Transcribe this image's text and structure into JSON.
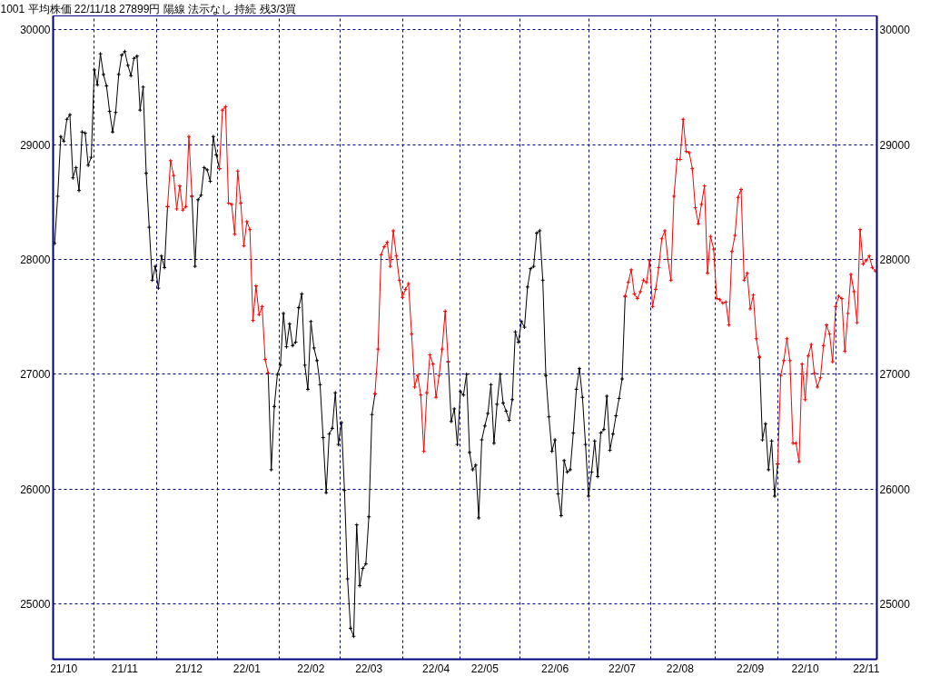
{
  "chart_data": {
    "type": "line",
    "title": "1001 平均株価 22/11/18 27899円 陽線 法示なし 持続 残3/3買",
    "categories": [
      null,
      null,
      null,
      "21/10",
      null,
      null,
      null,
      null,
      null,
      null,
      null,
      null,
      null,
      null,
      null,
      null,
      null,
      null,
      null,
      null,
      null,
      null,
      null,
      "21/11",
      null,
      null,
      null,
      null,
      null,
      null,
      null,
      null,
      null,
      null,
      null,
      null,
      null,
      null,
      null,
      null,
      null,
      null,
      null,
      null,
      "21/12",
      null,
      null,
      null,
      null,
      null,
      null,
      null,
      null,
      null,
      null,
      null,
      null,
      null,
      null,
      null,
      null,
      null,
      null,
      "22/01",
      null,
      null,
      null,
      null,
      null,
      null,
      null,
      null,
      null,
      null,
      null,
      null,
      null,
      null,
      null,
      null,
      null,
      null,
      null,
      null,
      "22/02",
      null,
      null,
      null,
      null,
      null,
      null,
      null,
      null,
      null,
      null,
      null,
      null,
      null,
      null,
      null,
      null,
      null,
      null,
      "22/03",
      null,
      null,
      null,
      null,
      null,
      null,
      null,
      null,
      null,
      null,
      null,
      null,
      null,
      null,
      null,
      null,
      null,
      null,
      null,
      null,
      null,
      "22/04",
      null,
      null,
      null,
      null,
      null,
      null,
      null,
      null,
      null,
      null,
      null,
      null,
      null,
      null,
      null,
      "22/05",
      null,
      null,
      null,
      null,
      null,
      null,
      null,
      null,
      null,
      null,
      null,
      null,
      null,
      null,
      null,
      null,
      null,
      null,
      null,
      null,
      null,
      null,
      "22/06",
      null,
      null,
      null,
      null,
      null,
      null,
      null,
      null,
      null,
      null,
      null,
      null,
      null,
      null,
      null,
      null,
      null,
      null,
      null,
      null,
      null,
      "22/07",
      null,
      null,
      null,
      null,
      null,
      null,
      null,
      null,
      null,
      null,
      null,
      null,
      null,
      null,
      null,
      null,
      null,
      null,
      "22/08",
      null,
      null,
      null,
      null,
      null,
      null,
      null,
      null,
      null,
      null,
      null,
      null,
      null,
      null,
      null,
      null,
      null,
      null,
      null,
      null,
      null,
      null,
      "22/09",
      null,
      null,
      null,
      null,
      null,
      null,
      null,
      null,
      null,
      null,
      null,
      null,
      null,
      null,
      null,
      null,
      null,
      "22/10",
      null,
      null,
      null,
      null,
      null,
      null,
      null,
      null,
      null,
      null,
      null,
      null,
      null,
      null,
      null,
      null,
      null,
      null,
      null,
      "22/11",
      null,
      null,
      null
    ],
    "series": [
      {
        "color": "#000000",
        "values": [
          28140,
          28550,
          29070,
          29030,
          29220,
          29260,
          28710,
          28800,
          28600,
          29110,
          29100,
          28820,
          28890,
          29650,
          29520,
          29790,
          29610,
          29510,
          29290,
          29110,
          29280,
          29610,
          29780,
          29810,
          29690,
          29600,
          29750,
          29770,
          29300,
          29500,
          28750,
          28280,
          27820,
          27940,
          27750,
          28030,
          27930,
          28460,
          null,
          null,
          null,
          null,
          null,
          null,
          null,
          28550,
          27940,
          28520,
          28560,
          28800,
          28780,
          28680,
          29070,
          28910,
          28790,
          null,
          null,
          null,
          null,
          null,
          null,
          null,
          null,
          null,
          null,
          null,
          null,
          null,
          null,
          null,
          27010,
          26170,
          26720,
          27000,
          27080,
          27530,
          27240,
          27440,
          27250,
          27280,
          27580,
          27700,
          27080,
          26870,
          27460,
          27230,
          27120,
          26910,
          26450,
          25970,
          26480,
          26530,
          26840,
          26390,
          26580,
          25990,
          25220,
          24790,
          24720,
          25690,
          25160,
          25310,
          25350,
          25760,
          26650,
          26830,
          null,
          null,
          null,
          null,
          null,
          null,
          null,
          null,
          null,
          null,
          null,
          null,
          null,
          null,
          null,
          null,
          null,
          null,
          null,
          null,
          null,
          null,
          null,
          27110,
          26590,
          26700,
          26390,
          26850,
          26820,
          27000,
          26320,
          26170,
          26210,
          25750,
          26430,
          26550,
          26660,
          26910,
          26400,
          26740,
          27000,
          26750,
          26680,
          26600,
          26780,
          27370,
          27280,
          27460,
          27410,
          27760,
          27920,
          27940,
          28230,
          28250,
          27820,
          26990,
          26630,
          26330,
          26430,
          25960,
          25770,
          26250,
          26150,
          26170,
          26490,
          26870,
          27050,
          26800,
          26390,
          25940,
          26150,
          26420,
          26110,
          26490,
          26520,
          26810,
          26340,
          26480,
          26640,
          26790,
          26960,
          27680,
          null,
          null,
          null,
          null,
          null,
          null,
          null,
          null,
          null,
          null,
          null,
          null,
          null,
          null,
          null,
          null,
          null,
          null,
          null,
          null,
          null,
          null,
          null,
          null,
          null,
          null,
          null,
          null,
          null,
          null,
          null,
          null,
          null,
          null,
          null,
          null,
          null,
          null,
          null,
          null,
          null,
          null,
          null,
          27150,
          26430,
          26570,
          26170,
          26420,
          25940,
          26220,
          null,
          null,
          null,
          null,
          null,
          null,
          null,
          null,
          null,
          null,
          null,
          null,
          null,
          null,
          null,
          null,
          null,
          null,
          null,
          null,
          null,
          null,
          null,
          null,
          null,
          null,
          null,
          null,
          null,
          null,
          null,
          null
        ]
      },
      {
        "color": "#ff0000",
        "values": [
          null,
          null,
          null,
          null,
          null,
          null,
          null,
          null,
          null,
          null,
          null,
          null,
          null,
          null,
          null,
          null,
          null,
          null,
          null,
          null,
          null,
          null,
          null,
          null,
          null,
          null,
          null,
          null,
          null,
          null,
          null,
          null,
          null,
          null,
          null,
          null,
          null,
          28460,
          28860,
          28730,
          28440,
          28640,
          28430,
          28460,
          29070,
          28550,
          null,
          null,
          null,
          null,
          null,
          null,
          null,
          null,
          28790,
          29300,
          29330,
          28490,
          28480,
          28220,
          28770,
          28490,
          28120,
          28330,
          28260,
          27470,
          27770,
          27520,
          27590,
          27130,
          27010,
          null,
          null,
          null,
          null,
          null,
          null,
          null,
          null,
          null,
          null,
          null,
          null,
          null,
          null,
          null,
          null,
          null,
          null,
          null,
          null,
          null,
          null,
          null,
          null,
          null,
          null,
          null,
          null,
          null,
          null,
          null,
          null,
          null,
          null,
          26830,
          27220,
          28040,
          28110,
          28150,
          27940,
          28250,
          28030,
          27820,
          27670,
          27740,
          27790,
          27350,
          26890,
          26990,
          26820,
          26330,
          26840,
          27170,
          27090,
          26800,
          26990,
          27220,
          27550,
          27110,
          null,
          null,
          null,
          null,
          null,
          null,
          null,
          null,
          null,
          null,
          null,
          null,
          null,
          null,
          null,
          null,
          null,
          null,
          null,
          null,
          null,
          null,
          null,
          null,
          null,
          null,
          null,
          null,
          null,
          null,
          null,
          null,
          null,
          null,
          null,
          null,
          null,
          null,
          null,
          null,
          null,
          null,
          null,
          null,
          null,
          null,
          null,
          null,
          null,
          null,
          null,
          null,
          null,
          null,
          null,
          null,
          null,
          27680,
          27800,
          27910,
          27700,
          27660,
          27720,
          27820,
          27800,
          27990,
          27590,
          27740,
          27930,
          28180,
          28250,
          28000,
          27820,
          28550,
          28870,
          28870,
          29220,
          28940,
          28930,
          28790,
          28450,
          28310,
          28480,
          28640,
          27880,
          28200,
          28090,
          27660,
          27650,
          27620,
          27630,
          27430,
          28070,
          28210,
          28540,
          28610,
          27820,
          27880,
          27570,
          27690,
          27310,
          27150,
          null,
          null,
          null,
          null,
          null,
          26220,
          26990,
          27120,
          27310,
          27120,
          26400,
          26400,
          26240,
          27090,
          26780,
          27160,
          27260,
          27010,
          26890,
          26970,
          27250,
          27430,
          27350,
          27110,
          27590,
          27680,
          27660,
          27200,
          27530,
          27870,
          27720,
          27450,
          28260,
          27960,
          27990,
          28030,
          27930,
          27900
        ]
      }
    ],
    "ylim": [
      24520,
      30120
    ],
    "yticks": [
      25000,
      26000,
      27000,
      28000,
      29000,
      30000
    ],
    "y2lim": [
      24520,
      30120
    ],
    "y2ticks": [
      25000,
      26000,
      27000,
      28000,
      29000,
      30000
    ],
    "grid": true,
    "marker": "cross"
  }
}
